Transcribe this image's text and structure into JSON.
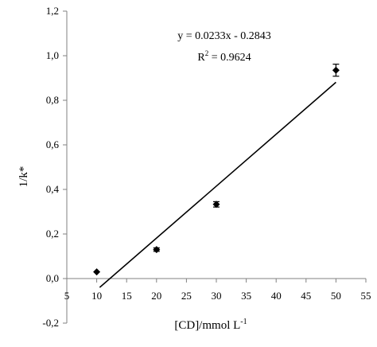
{
  "chart_data": {
    "type": "scatter",
    "xlabel": "[CD]/mmol L",
    "xlabel_sup": "-1",
    "ylabel": "1/k*",
    "xlim": [
      5,
      55
    ],
    "ylim": [
      -0.2,
      1.2
    ],
    "x_ticks": [
      "5",
      "10",
      "15",
      "20",
      "25",
      "30",
      "35",
      "40",
      "45",
      "50",
      "55"
    ],
    "y_ticks": [
      "-0,2",
      "0,0",
      "0,2",
      "0,4",
      "0,6",
      "0,8",
      "1,0",
      "1,2"
    ],
    "grid": false,
    "points": [
      {
        "x": 10,
        "y": 0.03,
        "err": 0.0
      },
      {
        "x": 20,
        "y": 0.13,
        "err": 0.008
      },
      {
        "x": 30,
        "y": 0.333,
        "err": 0.012
      },
      {
        "x": 50,
        "y": 0.935,
        "err": 0.027
      }
    ],
    "trendline": {
      "slope": 0.0233,
      "intercept": -0.2843,
      "x_range": [
        10.5,
        50
      ],
      "equation": "y = 0.0233x - 0.2843",
      "r2_prefix": "R",
      "r2_sup": "2",
      "r2_value": " = 0.9624"
    }
  }
}
